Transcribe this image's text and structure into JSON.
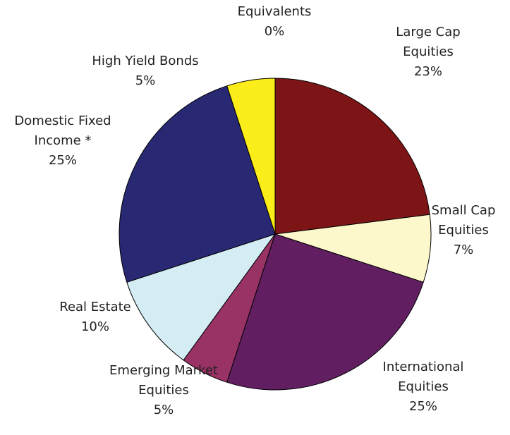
{
  "chart_data": {
    "type": "pie",
    "start_angle_deg": 0,
    "direction": "clockwise",
    "legend": "none",
    "slices": [
      {
        "label": "Large Cap\nEquities",
        "value": 23,
        "value_label": "23%",
        "color": "#7d1517"
      },
      {
        "label": "Small Cap\nEquities",
        "value": 7,
        "value_label": "7%",
        "color": "#fdf8cc"
      },
      {
        "label": "International\nEquities",
        "value": 25,
        "value_label": "25%",
        "color": "#611f62"
      },
      {
        "label": "Emerging Market\nEquities",
        "value": 5,
        "value_label": "5%",
        "color": "#993366"
      },
      {
        "label": "Real Estate",
        "value": 10,
        "value_label": "10%",
        "color": "#d4ecf3"
      },
      {
        "label": "Domestic Fixed\nIncome *",
        "value": 25,
        "value_label": "25%",
        "color": "#282873"
      },
      {
        "label": "High Yield Bonds",
        "value": 5,
        "value_label": "5%",
        "color": "#fbed19"
      },
      {
        "label": "Cash &\nEquivalents",
        "value": 0,
        "value_label": "0%",
        "color": "#ffffff"
      }
    ]
  }
}
